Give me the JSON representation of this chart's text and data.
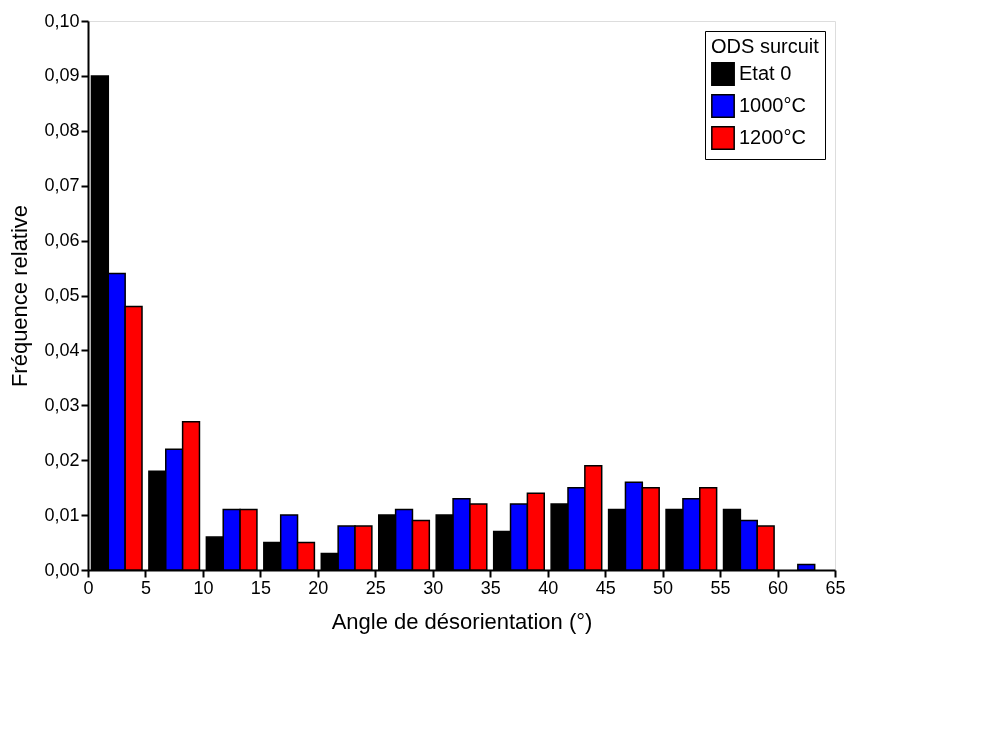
{
  "chart_data": {
    "type": "bar",
    "xlabel": "Angle de désorientation (°)",
    "ylabel": "Fréquence relative",
    "legend_title": "ODS surcuit",
    "x": [
      2.5,
      7.5,
      12.5,
      17.5,
      22.5,
      27.5,
      32.5,
      37.5,
      42.5,
      47.5,
      52.5,
      57.5,
      62.5
    ],
    "series": [
      {
        "name": "Etat 0",
        "color": "#000000",
        "values": [
          0.09,
          0.018,
          0.006,
          0.005,
          0.003,
          0.01,
          0.01,
          0.007,
          0.012,
          0.011,
          0.011,
          0.011,
          null
        ]
      },
      {
        "name": "1000°C",
        "color": "#0000ff",
        "values": [
          0.054,
          0.022,
          0.011,
          0.01,
          0.008,
          0.011,
          0.013,
          0.012,
          0.015,
          0.016,
          0.013,
          0.009,
          0.001
        ]
      },
      {
        "name": "1200°C",
        "color": "#ff0000",
        "values": [
          0.048,
          0.027,
          0.011,
          0.005,
          0.008,
          0.009,
          0.012,
          0.014,
          0.019,
          0.015,
          0.015,
          0.008,
          null
        ]
      }
    ],
    "xlim": [
      0,
      65
    ],
    "xticks": [
      0,
      5,
      10,
      15,
      20,
      25,
      30,
      35,
      40,
      45,
      50,
      55,
      60,
      65
    ],
    "ylim": [
      0,
      0.1
    ],
    "yticks": [
      {
        "value": 0,
        "label": "0,00"
      },
      {
        "value": 0.01,
        "label": "0,01"
      },
      {
        "value": 0.02,
        "label": "0,02"
      },
      {
        "value": 0.03,
        "label": "0,03"
      },
      {
        "value": 0.04,
        "label": "0,04"
      },
      {
        "value": 0.05,
        "label": "0,05"
      },
      {
        "value": 0.06,
        "label": "0,06"
      },
      {
        "value": 0.07,
        "label": "0,07"
      },
      {
        "value": 0.08,
        "label": "0,08"
      },
      {
        "value": 0.09,
        "label": "0,09"
      },
      {
        "value": 0.1,
        "label": "0,10"
      }
    ],
    "grid": false,
    "legend": "top right"
  }
}
